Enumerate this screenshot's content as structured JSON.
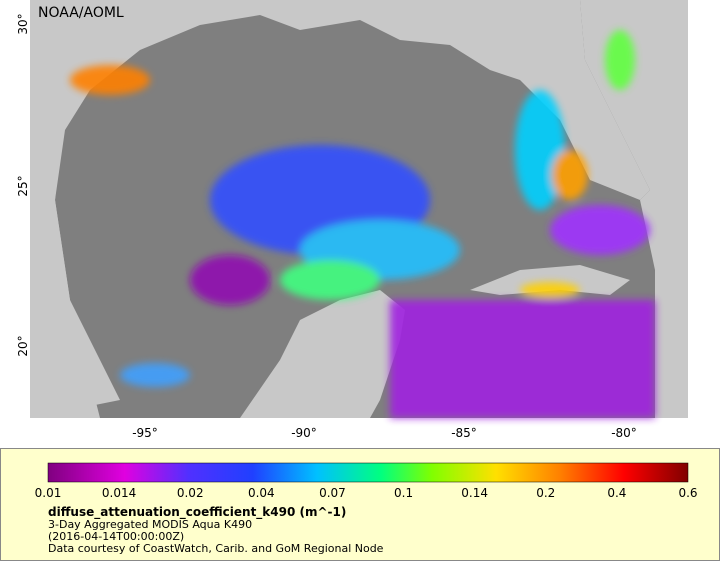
{
  "header": {
    "attribution": "NOAA/AOML"
  },
  "map": {
    "lat_labels": [
      "30°",
      "25°",
      "20°"
    ],
    "lon_labels": [
      "-95°",
      "-90°",
      "-85°",
      "-80°"
    ]
  },
  "colorbar": {
    "tick_labels": [
      "0.01",
      "0.014",
      "0.02",
      "0.04",
      "0.07",
      "0.1",
      "0.14",
      "0.2",
      "0.4",
      "0.6"
    ]
  },
  "caption": {
    "variable": "diffuse_attenuation_coefficient_k490 (m^-1)",
    "product": "3-Day Aggregated MODIS Aqua K490",
    "time": "(2016-04-14T00:00:00Z)",
    "credit": "Data courtesy of CoastWatch, Carib. and GoM Regional Node"
  }
}
